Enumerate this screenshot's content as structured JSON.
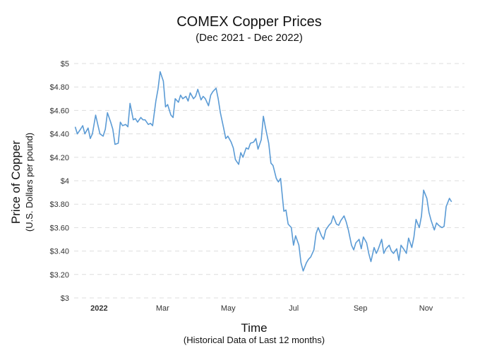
{
  "chart_data": {
    "type": "line",
    "title": "COMEX Copper Prices",
    "subtitle": "(Dec 2021 - Dec 2022)",
    "xlabel": "Time",
    "xlabel_sub": "(Historical Data of Last 12 months)",
    "ylabel": "Price of Copper",
    "ylabel_sub": "(U.S. Dollars per pound)",
    "ylim": [
      3,
      5
    ],
    "xlim": [
      "2021-12-14",
      "2022-12-12"
    ],
    "grid": true,
    "y_ticks": [
      {
        "value": 3.0,
        "label": "$3"
      },
      {
        "value": 3.2,
        "label": "$3.20"
      },
      {
        "value": 3.4,
        "label": "$3.40"
      },
      {
        "value": 3.6,
        "label": "$3.60"
      },
      {
        "value": 3.8,
        "label": "$3.80"
      },
      {
        "value": 4.0,
        "label": "$4"
      },
      {
        "value": 4.2,
        "label": "$4.20"
      },
      {
        "value": 4.4,
        "label": "$4.40"
      },
      {
        "value": 4.6,
        "label": "$4.60"
      },
      {
        "value": 4.8,
        "label": "$4.80"
      },
      {
        "value": 5.0,
        "label": "$5"
      }
    ],
    "x_ticks": [
      {
        "date": "2022-01-01",
        "label": "2022",
        "bold": true
      },
      {
        "date": "2022-03-01",
        "label": "Mar",
        "bold": false
      },
      {
        "date": "2022-05-01",
        "label": "May",
        "bold": false
      },
      {
        "date": "2022-07-01",
        "label": "Jul",
        "bold": false
      },
      {
        "date": "2022-09-01",
        "label": "Sep",
        "bold": false
      },
      {
        "date": "2022-11-01",
        "label": "Nov",
        "bold": false
      }
    ],
    "series": [
      {
        "color": "#5b9bd5",
        "points": [
          [
            "2021-12-15",
            4.46
          ],
          [
            "2021-12-17",
            4.4
          ],
          [
            "2021-12-20",
            4.44
          ],
          [
            "2021-12-22",
            4.47
          ],
          [
            "2021-12-24",
            4.4
          ],
          [
            "2021-12-27",
            4.45
          ],
          [
            "2021-12-29",
            4.36
          ],
          [
            "2021-12-31",
            4.4
          ],
          [
            "2022-01-03",
            4.56
          ],
          [
            "2022-01-05",
            4.48
          ],
          [
            "2022-01-07",
            4.4
          ],
          [
            "2022-01-10",
            4.38
          ],
          [
            "2022-01-12",
            4.44
          ],
          [
            "2022-01-14",
            4.58
          ],
          [
            "2022-01-17",
            4.5
          ],
          [
            "2022-01-19",
            4.44
          ],
          [
            "2022-01-21",
            4.31
          ],
          [
            "2022-01-24",
            4.32
          ],
          [
            "2022-01-26",
            4.5
          ],
          [
            "2022-01-28",
            4.47
          ],
          [
            "2022-01-31",
            4.48
          ],
          [
            "2022-02-02",
            4.46
          ],
          [
            "2022-02-04",
            4.66
          ],
          [
            "2022-02-07",
            4.52
          ],
          [
            "2022-02-09",
            4.53
          ],
          [
            "2022-02-11",
            4.5
          ],
          [
            "2022-02-14",
            4.54
          ],
          [
            "2022-02-16",
            4.52
          ],
          [
            "2022-02-18",
            4.52
          ],
          [
            "2022-02-21",
            4.48
          ],
          [
            "2022-02-23",
            4.49
          ],
          [
            "2022-02-25",
            4.47
          ],
          [
            "2022-02-28",
            4.68
          ],
          [
            "2022-03-02",
            4.78
          ],
          [
            "2022-03-04",
            4.93
          ],
          [
            "2022-03-07",
            4.85
          ],
          [
            "2022-03-09",
            4.63
          ],
          [
            "2022-03-11",
            4.65
          ],
          [
            "2022-03-14",
            4.56
          ],
          [
            "2022-03-16",
            4.54
          ],
          [
            "2022-03-18",
            4.7
          ],
          [
            "2022-03-21",
            4.67
          ],
          [
            "2022-03-23",
            4.73
          ],
          [
            "2022-03-25",
            4.7
          ],
          [
            "2022-03-28",
            4.72
          ],
          [
            "2022-03-30",
            4.68
          ],
          [
            "2022-04-01",
            4.75
          ],
          [
            "2022-04-04",
            4.7
          ],
          [
            "2022-04-06",
            4.72
          ],
          [
            "2022-04-08",
            4.78
          ],
          [
            "2022-04-11",
            4.69
          ],
          [
            "2022-04-13",
            4.72
          ],
          [
            "2022-04-15",
            4.7
          ],
          [
            "2022-04-18",
            4.64
          ],
          [
            "2022-04-20",
            4.73
          ],
          [
            "2022-04-22",
            4.76
          ],
          [
            "2022-04-25",
            4.79
          ],
          [
            "2022-04-27",
            4.7
          ],
          [
            "2022-04-29",
            4.58
          ],
          [
            "2022-05-02",
            4.45
          ],
          [
            "2022-05-04",
            4.36
          ],
          [
            "2022-05-06",
            4.38
          ],
          [
            "2022-05-09",
            4.33
          ],
          [
            "2022-05-11",
            4.28
          ],
          [
            "2022-05-13",
            4.18
          ],
          [
            "2022-05-16",
            4.14
          ],
          [
            "2022-05-18",
            4.24
          ],
          [
            "2022-05-20",
            4.2
          ],
          [
            "2022-05-23",
            4.28
          ],
          [
            "2022-05-25",
            4.27
          ],
          [
            "2022-05-27",
            4.32
          ],
          [
            "2022-05-30",
            4.33
          ],
          [
            "2022-06-01",
            4.36
          ],
          [
            "2022-06-03",
            4.27
          ],
          [
            "2022-06-06",
            4.35
          ],
          [
            "2022-06-08",
            4.55
          ],
          [
            "2022-06-10",
            4.45
          ],
          [
            "2022-06-13",
            4.32
          ],
          [
            "2022-06-15",
            4.15
          ],
          [
            "2022-06-17",
            4.13
          ],
          [
            "2022-06-20",
            4.02
          ],
          [
            "2022-06-22",
            3.99
          ],
          [
            "2022-06-24",
            4.02
          ],
          [
            "2022-06-27",
            3.74
          ],
          [
            "2022-06-29",
            3.75
          ],
          [
            "2022-07-01",
            3.63
          ],
          [
            "2022-07-04",
            3.6
          ],
          [
            "2022-07-06",
            3.45
          ],
          [
            "2022-07-08",
            3.53
          ],
          [
            "2022-07-11",
            3.45
          ],
          [
            "2022-07-13",
            3.3
          ],
          [
            "2022-07-15",
            3.23
          ],
          [
            "2022-07-18",
            3.3
          ],
          [
            "2022-07-20",
            3.33
          ],
          [
            "2022-07-22",
            3.35
          ],
          [
            "2022-07-25",
            3.41
          ],
          [
            "2022-07-27",
            3.55
          ],
          [
            "2022-07-29",
            3.6
          ],
          [
            "2022-08-01",
            3.53
          ],
          [
            "2022-08-03",
            3.5
          ],
          [
            "2022-08-05",
            3.58
          ],
          [
            "2022-08-08",
            3.62
          ],
          [
            "2022-08-10",
            3.64
          ],
          [
            "2022-08-12",
            3.7
          ],
          [
            "2022-08-15",
            3.63
          ],
          [
            "2022-08-17",
            3.62
          ],
          [
            "2022-08-19",
            3.66
          ],
          [
            "2022-08-22",
            3.7
          ],
          [
            "2022-08-24",
            3.65
          ],
          [
            "2022-08-26",
            3.58
          ],
          [
            "2022-08-29",
            3.45
          ],
          [
            "2022-08-31",
            3.41
          ],
          [
            "2022-09-02",
            3.47
          ],
          [
            "2022-09-05",
            3.5
          ],
          [
            "2022-09-07",
            3.42
          ],
          [
            "2022-09-09",
            3.52
          ],
          [
            "2022-09-12",
            3.47
          ],
          [
            "2022-09-14",
            3.38
          ],
          [
            "2022-09-16",
            3.31
          ],
          [
            "2022-09-19",
            3.43
          ],
          [
            "2022-09-21",
            3.38
          ],
          [
            "2022-09-23",
            3.42
          ],
          [
            "2022-09-26",
            3.5
          ],
          [
            "2022-09-28",
            3.38
          ],
          [
            "2022-09-30",
            3.42
          ],
          [
            "2022-10-03",
            3.45
          ],
          [
            "2022-10-05",
            3.4
          ],
          [
            "2022-10-07",
            3.38
          ],
          [
            "2022-10-10",
            3.42
          ],
          [
            "2022-10-12",
            3.32
          ],
          [
            "2022-10-14",
            3.45
          ],
          [
            "2022-10-17",
            3.41
          ],
          [
            "2022-10-19",
            3.38
          ],
          [
            "2022-10-21",
            3.51
          ],
          [
            "2022-10-24",
            3.43
          ],
          [
            "2022-10-26",
            3.52
          ],
          [
            "2022-10-28",
            3.67
          ],
          [
            "2022-10-31",
            3.6
          ],
          [
            "2022-11-02",
            3.7
          ],
          [
            "2022-11-04",
            3.92
          ],
          [
            "2022-11-07",
            3.85
          ],
          [
            "2022-11-09",
            3.73
          ],
          [
            "2022-11-11",
            3.66
          ],
          [
            "2022-11-14",
            3.58
          ],
          [
            "2022-11-16",
            3.64
          ],
          [
            "2022-11-18",
            3.62
          ],
          [
            "2022-11-21",
            3.6
          ],
          [
            "2022-11-23",
            3.61
          ],
          [
            "2022-11-25",
            3.78
          ],
          [
            "2022-11-28",
            3.85
          ],
          [
            "2022-11-30",
            3.82
          ]
        ]
      }
    ]
  }
}
